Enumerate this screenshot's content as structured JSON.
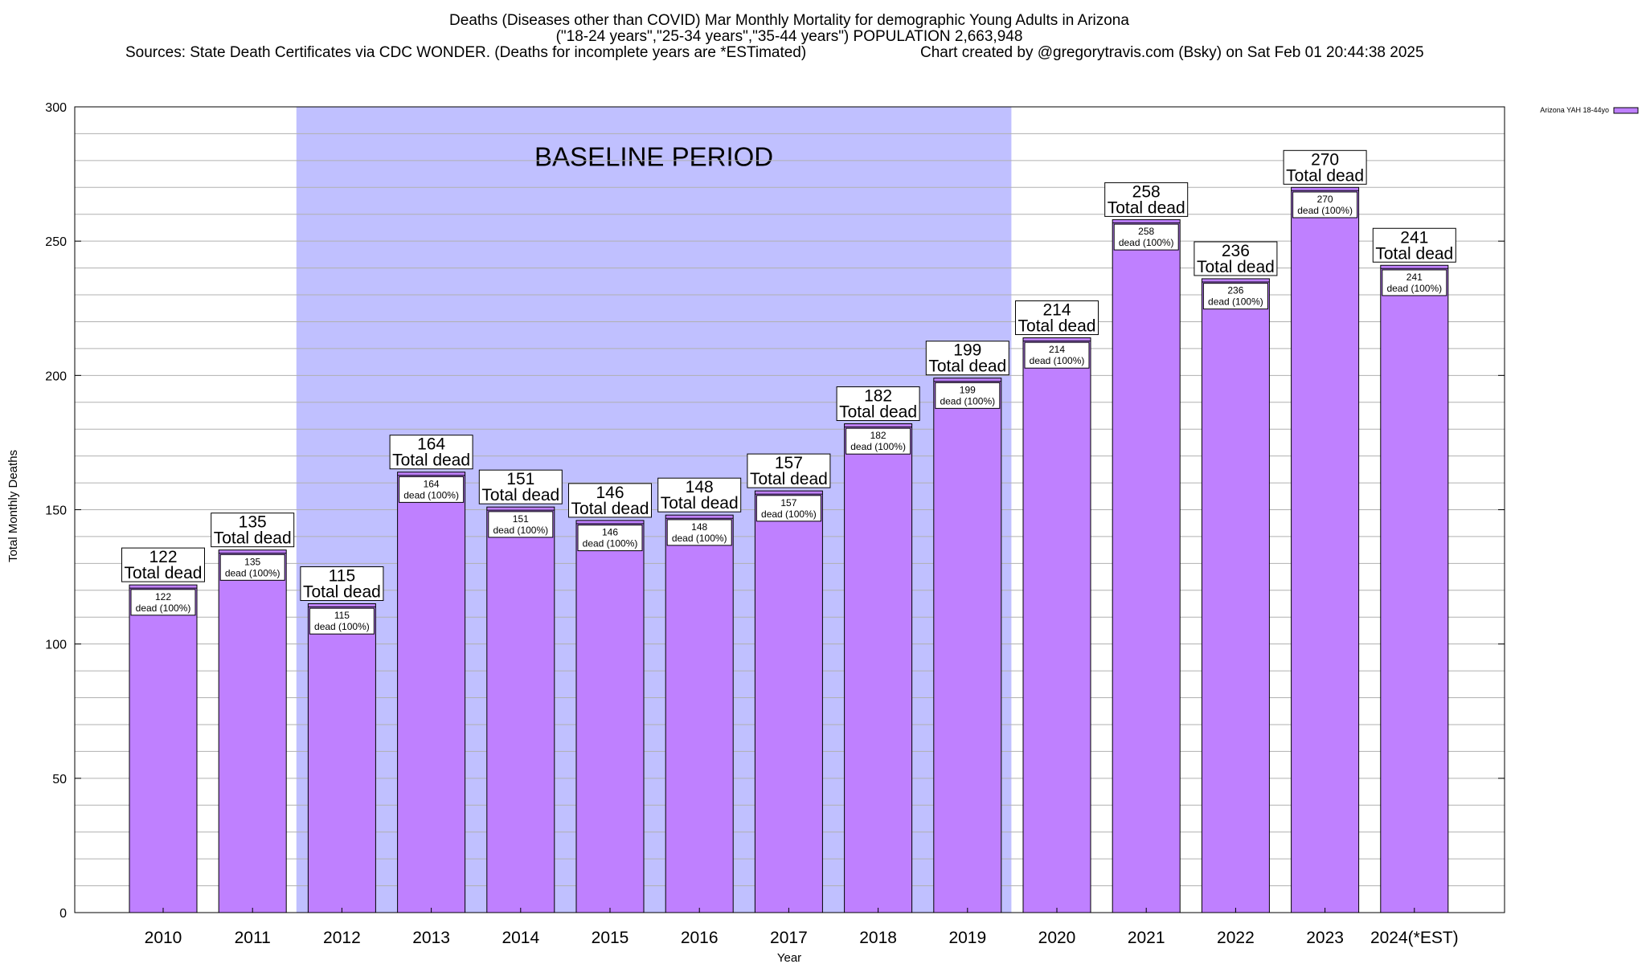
{
  "chart_data": {
    "type": "bar",
    "title_lines": [
      "Deaths (Diseases other than COVID) Mar Monthly Mortality for demographic Young Adults in Arizona",
      "(\"18-24 years\",\"25-34 years\",\"35-44 years\") POPULATION 2,663,948",
      "Sources: State Death Certificates via CDC WONDER. (Deaths for incomplete years are *ESTimated)",
      "Chart created by @gregorytravis.com (Bsky) on Sat Feb 01 20:44:38 2025"
    ],
    "xlabel": "Year",
    "ylabel": "Total Monthly Deaths",
    "ylim": [
      0,
      300
    ],
    "yticks": [
      0,
      50,
      100,
      150,
      200,
      250,
      300
    ],
    "categories": [
      "2010",
      "2011",
      "2012",
      "2013",
      "2014",
      "2015",
      "2016",
      "2017",
      "2018",
      "2019",
      "2020",
      "2021",
      "2022",
      "2023",
      "2024(*EST)"
    ],
    "series": [
      {
        "name": "Arizona YAH 18-44yo",
        "color": "#bf80ff",
        "values": [
          122,
          135,
          115,
          164,
          151,
          146,
          148,
          157,
          182,
          199,
          214,
          258,
          236,
          270,
          241
        ]
      }
    ],
    "top_label_suffix": "Total dead",
    "inner_label_suffix": "dead (100%)",
    "baseline": {
      "label": "BASELINE PERIOD",
      "from": "2012",
      "to": "2019",
      "color": "#c0c0ff"
    },
    "grid": true,
    "legend_position": "top-right"
  }
}
